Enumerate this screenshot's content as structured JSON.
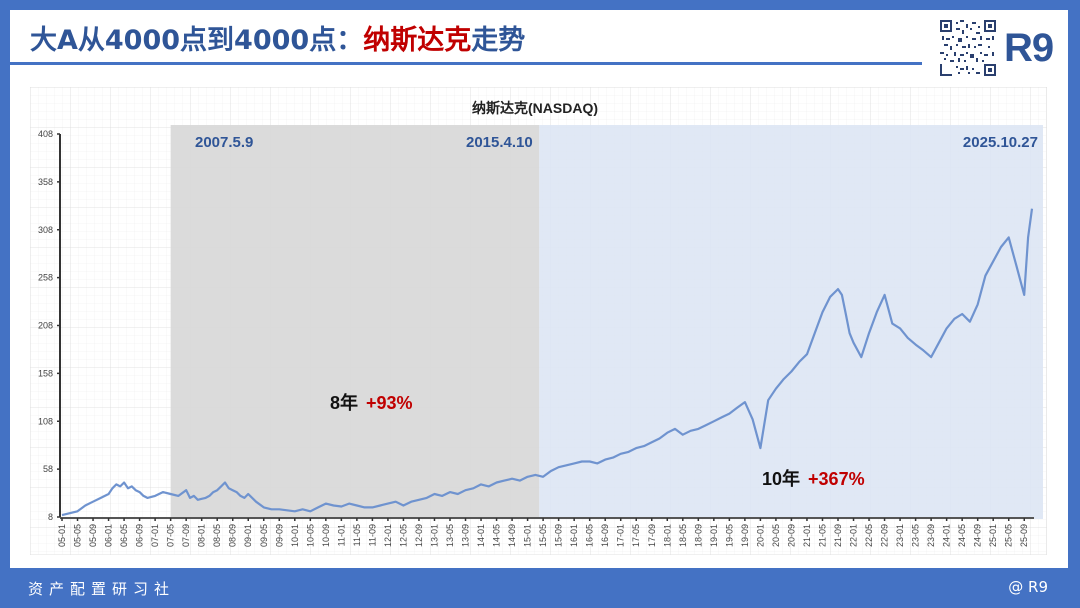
{
  "header": {
    "title_prefix": "大A从4000点到4000点：",
    "title_accent": "纳斯达克",
    "title_suffix": "走势",
    "logo": "R9",
    "qr_icon": "qr-code-icon"
  },
  "footer": {
    "left": "资产配置研习社",
    "right": "@ R9"
  },
  "colors": {
    "frame": "#4472c4",
    "title": "#2f5597",
    "accent_red": "#c00000",
    "line": "#6f93cf",
    "line_early": "#4a72bd",
    "gray_region": "#d9d9d9",
    "blue_region": "#dde6f4"
  },
  "chart_data": {
    "type": "line",
    "title": "纳斯达克(NASDAQ)",
    "xlabel": "",
    "ylabel": "",
    "ylim": [
      8,
      408
    ],
    "yticks": [
      8,
      58,
      108,
      158,
      208,
      258,
      308,
      358,
      408
    ],
    "grid": true,
    "legend": "none",
    "xticks": [
      "05-01",
      "05-05",
      "05-09",
      "06-01",
      "06-05",
      "06-09",
      "07-01",
      "07-05",
      "07-09",
      "08-01",
      "08-05",
      "08-09",
      "09-01",
      "09-05",
      "09-09",
      "10-01",
      "10-05",
      "10-09",
      "11-01",
      "11-05",
      "11-09",
      "12-01",
      "12-05",
      "12-09",
      "13-01",
      "13-05",
      "13-09",
      "14-01",
      "14-05",
      "14-09",
      "15-01",
      "15-05",
      "15-09",
      "16-01",
      "16-05",
      "16-09",
      "17-01",
      "17-05",
      "17-09",
      "18-01",
      "18-05",
      "18-09",
      "19-01",
      "19-05",
      "19-09",
      "20-01",
      "20-05",
      "20-09",
      "21-01",
      "21-05",
      "21-09",
      "22-01",
      "22-05",
      "22-09",
      "23-01",
      "23-05",
      "23-09",
      "24-01",
      "24-05",
      "24-09",
      "25-01",
      "25-05",
      "25-09"
    ],
    "series": [
      {
        "name": "NASDAQ",
        "x_months_from_2005_01": [
          0,
          2,
          4,
          6,
          8,
          10,
          12,
          13,
          14,
          15,
          16,
          17,
          18,
          19,
          20,
          21,
          22,
          24,
          26,
          28,
          30,
          32,
          33,
          34,
          35,
          36,
          37,
          38,
          39,
          40,
          41,
          42,
          43,
          44,
          45,
          46,
          47,
          48,
          50,
          52,
          54,
          56,
          58,
          60,
          62,
          64,
          66,
          68,
          70,
          72,
          74,
          76,
          78,
          80,
          82,
          84,
          86,
          88,
          90,
          92,
          94,
          96,
          98,
          100,
          102,
          104,
          106,
          108,
          110,
          112,
          114,
          116,
          118,
          120,
          122,
          124,
          126,
          128,
          130,
          132,
          134,
          136,
          138,
          140,
          142,
          144,
          146,
          148,
          150,
          152,
          154,
          156,
          158,
          160,
          162,
          164,
          166,
          168,
          170,
          172,
          174,
          176,
          178,
          180,
          182,
          184,
          186,
          188,
          190,
          192,
          194,
          196,
          198,
          200,
          201,
          202,
          203,
          204,
          206,
          208,
          210,
          212,
          214,
          216,
          218,
          220,
          222,
          224,
          226,
          228,
          230,
          232,
          234,
          236,
          238,
          240,
          242,
          244,
          246,
          248,
          249,
          250
        ],
        "values": [
          10,
          12,
          14,
          20,
          24,
          28,
          32,
          38,
          42,
          40,
          44,
          38,
          40,
          36,
          34,
          30,
          28,
          30,
          34,
          32,
          30,
          36,
          28,
          30,
          26,
          27,
          28,
          30,
          34,
          36,
          40,
          44,
          38,
          36,
          34,
          30,
          28,
          32,
          24,
          18,
          16,
          16,
          15,
          14,
          16,
          14,
          18,
          22,
          20,
          19,
          22,
          20,
          18,
          18,
          20,
          22,
          24,
          20,
          24,
          26,
          28,
          32,
          30,
          34,
          32,
          36,
          38,
          42,
          40,
          44,
          46,
          48,
          46,
          50,
          52,
          50,
          56,
          60,
          62,
          64,
          66,
          66,
          64,
          68,
          70,
          74,
          76,
          80,
          82,
          86,
          90,
          96,
          100,
          94,
          98,
          100,
          104,
          108,
          112,
          116,
          122,
          128,
          110,
          80,
          130,
          142,
          152,
          160,
          170,
          178,
          200,
          222,
          238,
          246,
          240,
          220,
          200,
          190,
          175,
          200,
          222,
          240,
          210,
          205,
          195,
          188,
          182,
          175,
          190,
          205,
          215,
          220,
          212,
          230,
          260,
          275,
          290,
          300,
          270,
          240,
          300,
          330,
          355,
          345,
          332,
          328,
          336
        ]
      }
    ],
    "regions": [
      {
        "label": "2007.5.9",
        "start": "07-05",
        "end": "15-04",
        "shade": "gray",
        "annotation": "8年",
        "change": "+93%"
      },
      {
        "label": "2015.4.10",
        "start": "15-04",
        "end": "25-10",
        "shade": "blue",
        "annotation": "10年",
        "change": "+367%"
      }
    ],
    "end_label": "2025.10.27"
  }
}
